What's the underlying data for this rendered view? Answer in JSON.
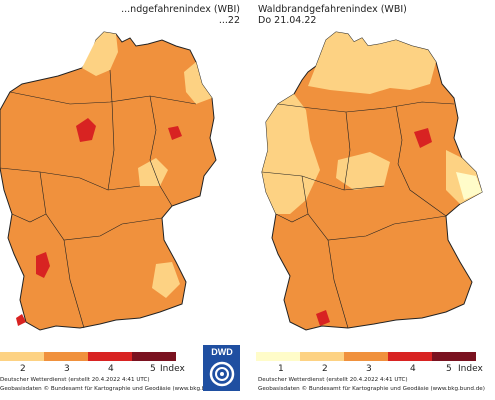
{
  "left_map": {
    "title": "...ndgefahrenindex (WBI)",
    "date": "...22",
    "legend_labels": [
      "2",
      "3",
      "4",
      "5",
      "Index"
    ],
    "credit_line1": "Deutscher Wetterdienst (erstellt 20.4.2022 4:41 UTC)",
    "credit_line2": "Geobasisdaten © Bundesamt für Kartographie und Geodäsie (www.bkg.bund.de)"
  },
  "right_map": {
    "title": "Waldbrandgefahrenindex (WBI)",
    "date": "Do 21.04.22",
    "legend_labels": [
      "1",
      "2",
      "3",
      "4",
      "5",
      "Index"
    ],
    "credit_line1": "Deutscher Wetterdienst (erstellt 20.4.2022 4:41 UTC)",
    "credit_line2": "Geobasisdaten © Bundesamt für Kartographie und Geodäsie (www.bkg.bund.de)"
  },
  "logo": {
    "text": "DWD",
    "icon": "dwd-logo-icon"
  },
  "colors": {
    "level_1": "#fffcc9",
    "level_2": "#fdd283",
    "level_3": "#f0913d",
    "level_4": "#d82322",
    "level_5": "#7a1220",
    "border": "#222222"
  }
}
